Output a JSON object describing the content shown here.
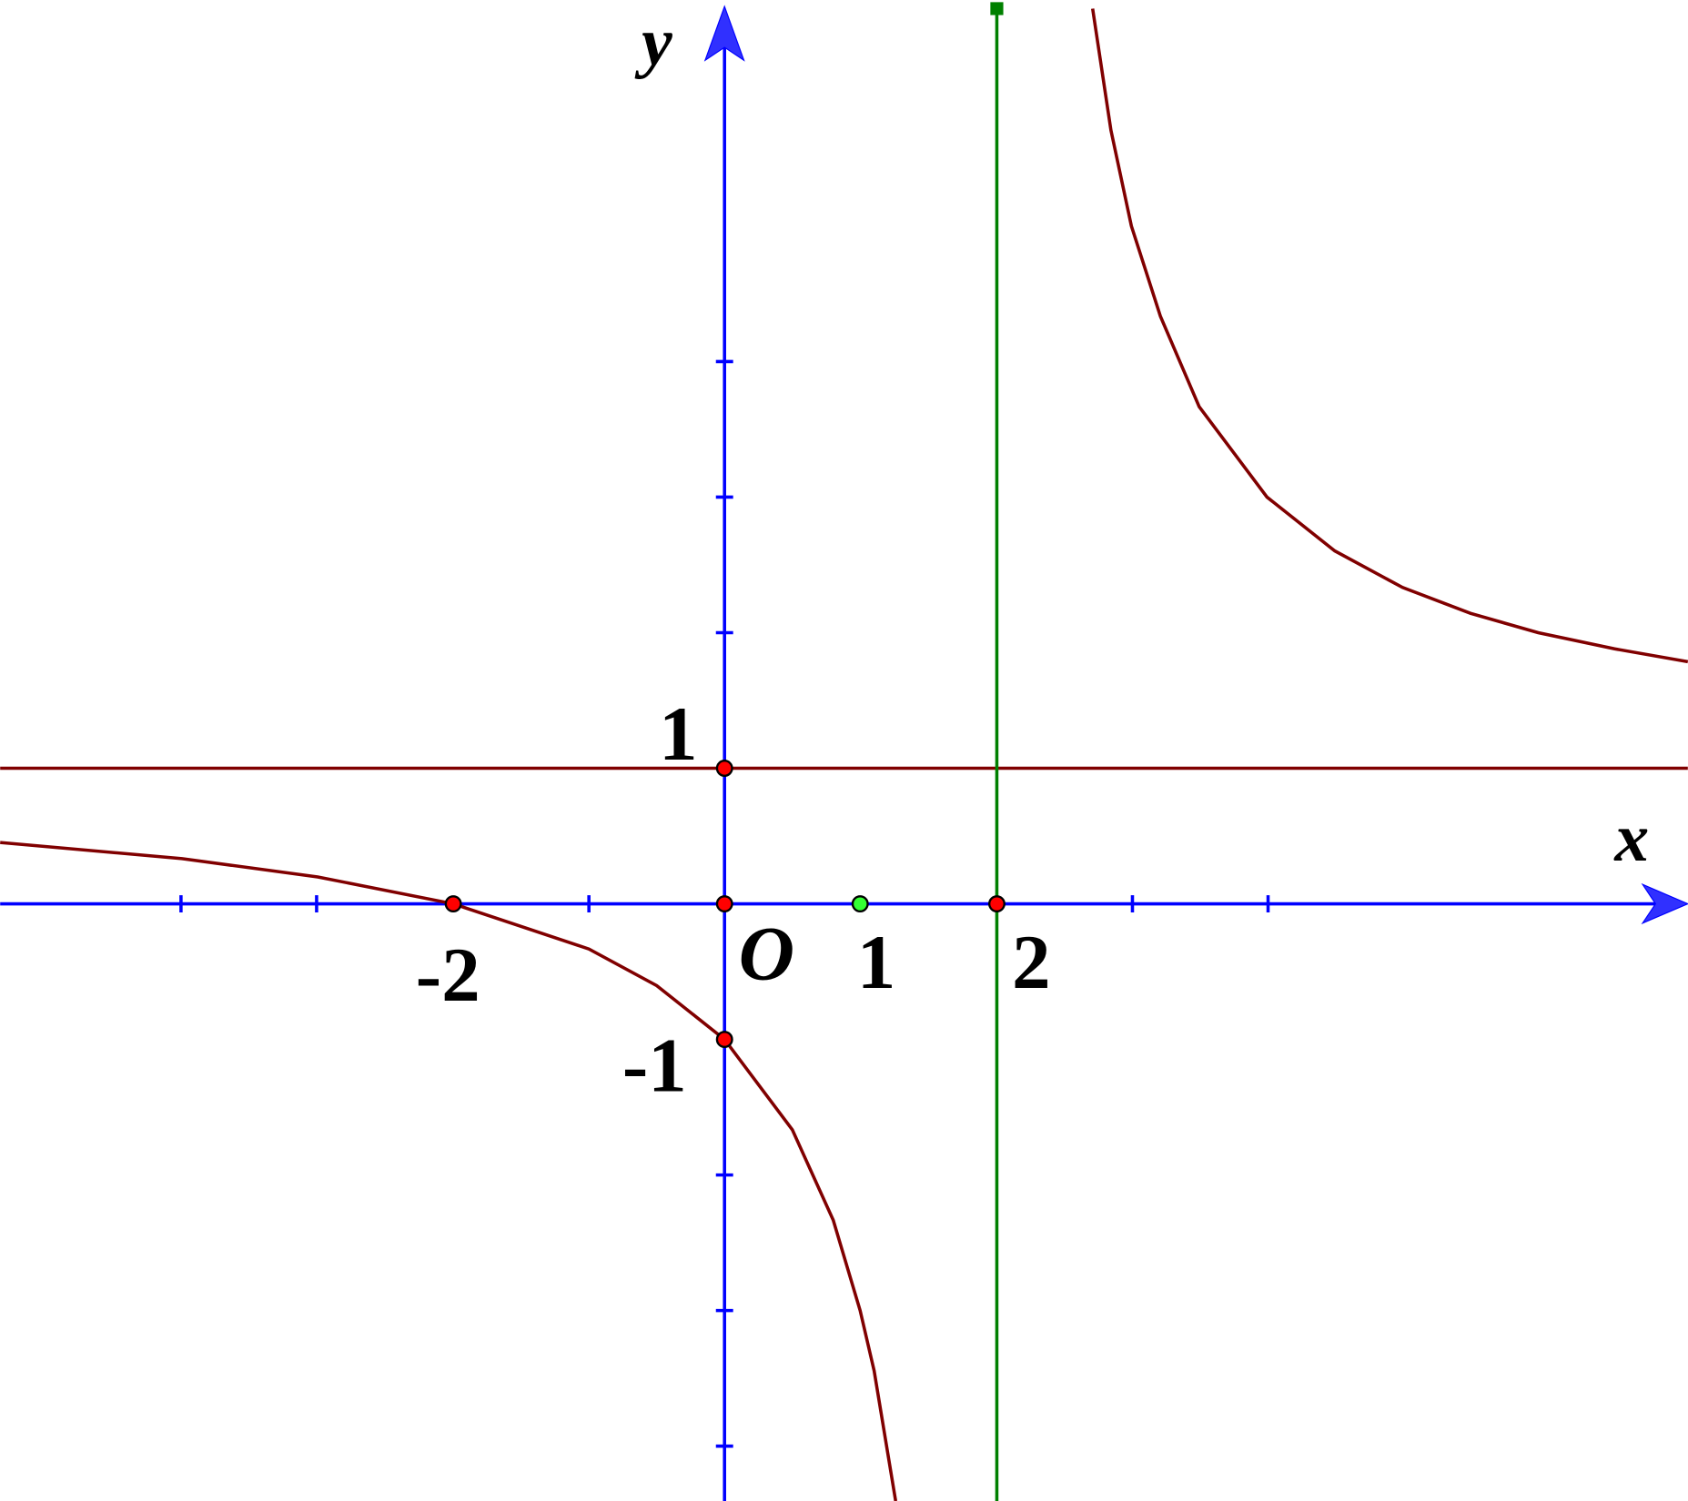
{
  "axes": {
    "x_label": "x",
    "y_label": "y",
    "origin_label": "O"
  },
  "x_tick_labels": [
    "-2",
    "1",
    "2"
  ],
  "y_tick_labels": [
    "1",
    "-1"
  ]
}
